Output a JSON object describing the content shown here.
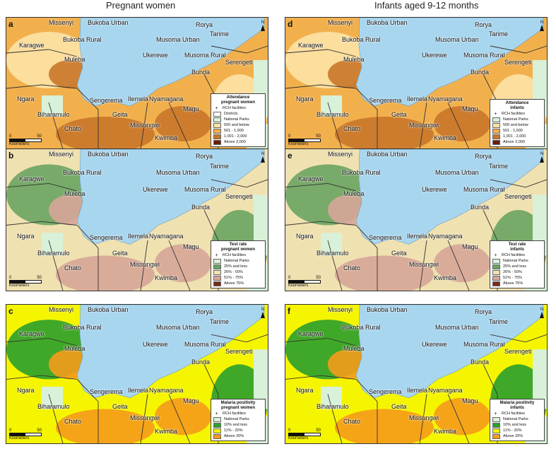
{
  "headers": {
    "left": "Pregnant women",
    "right": "Infants aged 9-12 months"
  },
  "colors": {
    "lake": "#a9d6ef",
    "park": "#d8f1d8",
    "land": "#f3f3f3",
    "boundary": "#333333",
    "attendance": [
      "#fde3a6",
      "#f2b04d",
      "#c9772a",
      "#6e1a08"
    ],
    "test": [
      "#6aa462",
      "#f0e1b0",
      "#d6a698",
      "#7a2a18"
    ],
    "malaria": [
      "#2ca02c",
      "#f6f500",
      "#f59b1b"
    ]
  },
  "districts": [
    "Missenyi",
    "Bukoba Urban",
    "Bukoba Rural",
    "Karagwe",
    "Muleba",
    "Musoma Urban",
    "Rorya",
    "Tarime",
    "Ukerewe",
    "Musoma Rural",
    "Bunda",
    "Serengeti",
    "Ngara",
    "Biharamulo",
    "Chato",
    "Geita",
    "Sengerema",
    "Ilemela",
    "Nyamagana",
    "Magu",
    "Missungwi",
    "Kwimba"
  ],
  "scale": {
    "label": "Kilometers",
    "ticks": [
      "0",
      "50"
    ]
  },
  "north": "N",
  "panels": [
    {
      "letter": "a",
      "legend": {
        "title1": "Attendance",
        "title2": "pregnant women",
        "items": [
          "RCH facilities",
          "Districts",
          "National Parks",
          "500 and below",
          "501 - 1,000",
          "1,001 - 2,000",
          "Above 2,000"
        ]
      }
    },
    {
      "letter": "d",
      "legend": {
        "title1": "Attendance",
        "title2": "infants",
        "items": [
          "RCH facilities",
          "National Parks",
          "500 and below",
          "501 - 1,000",
          "1,001 - 2,000",
          "Above 2,000"
        ]
      }
    },
    {
      "letter": "b",
      "legend": {
        "title1": "Test rate",
        "title2": "pregnant women",
        "items": [
          "RCH facilities",
          "National Parks",
          "25% and less",
          "26% - 50%",
          "51% - 75%",
          "Above 75%"
        ]
      }
    },
    {
      "letter": "e",
      "legend": {
        "title1": "Test rate",
        "title2": "infants",
        "items": [
          "RCH facilities",
          "National Parks",
          "25% and less",
          "26% - 50%",
          "51% - 75%",
          "Above 75%"
        ]
      }
    },
    {
      "letter": "c",
      "legend": {
        "title1": "Malaria positivity",
        "title2": "pregnant women",
        "items": [
          "RCH facilities",
          "National Parks",
          "10% and less",
          "11% - 20%",
          "Above 20%"
        ]
      }
    },
    {
      "letter": "f",
      "legend": {
        "title1": "Malaria positivity",
        "title2": "infants",
        "items": [
          "RCH facilities",
          "National Parks",
          "10% and less",
          "11% - 20%",
          "Above 20%"
        ]
      }
    }
  ]
}
